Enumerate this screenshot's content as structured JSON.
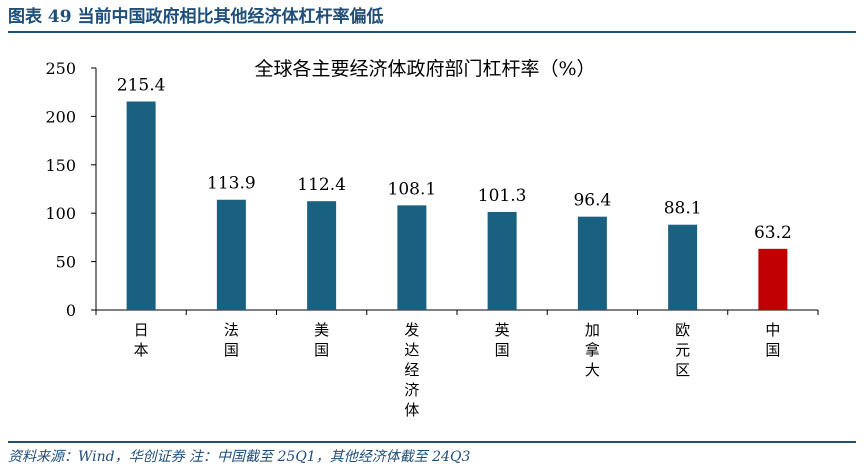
{
  "figure": {
    "title": "图表 49   当前中国政府相比其他经济体杠杆率偏低",
    "source": "资料来源：Wind，华创证券   注：中国截至 25Q1，其他经济体截至 24Q3"
  },
  "colors": {
    "bar": "#1a6080",
    "highlight": "#c00000",
    "frame": "#1f4e79"
  },
  "chart_data": {
    "type": "bar",
    "title": "全球各主要经济体政府部门杠杆率（%）",
    "xlabel": "",
    "ylabel": "",
    "categories": [
      "日本",
      "法国",
      "美国",
      "发达经济体",
      "英国",
      "加拿大",
      "欧元区",
      "中国"
    ],
    "values": [
      215.4,
      113.9,
      112.4,
      108.1,
      101.3,
      96.4,
      88.1,
      63.2
    ],
    "data_labels": [
      "215.4",
      "113.9",
      "112.4",
      "108.1",
      "101.3",
      "96.4",
      "88.1",
      "63.2"
    ],
    "highlight_category": "中国",
    "ylim": [
      0,
      250
    ],
    "yticks": [
      0,
      50,
      100,
      150,
      200,
      250
    ],
    "grid": false,
    "legend": "none"
  }
}
